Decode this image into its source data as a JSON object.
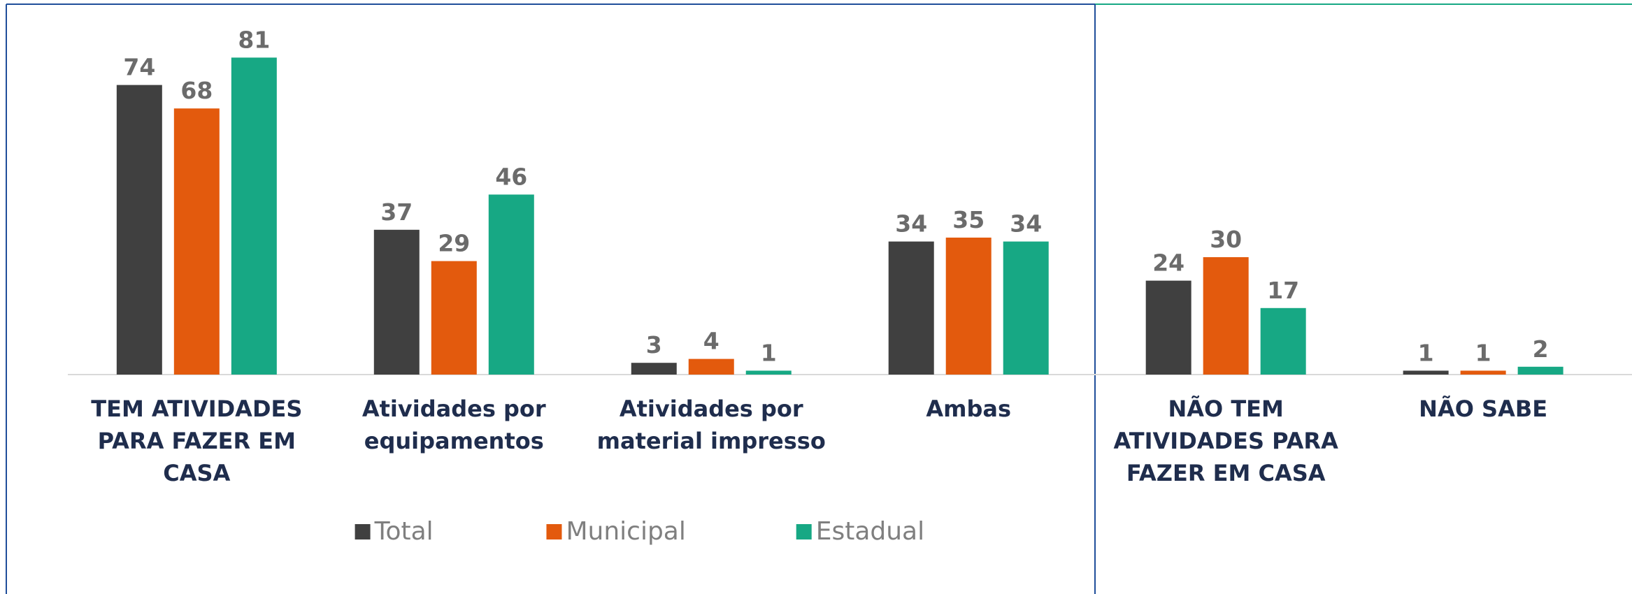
{
  "chart_data": {
    "type": "bar",
    "categories": [
      "TEM ATIVIDADES PARA FAZER EM CASA",
      "Atividades por equipamentos",
      "Atividades por material impresso",
      "Ambas",
      "NÃO TEM ATIVIDADES PARA FAZER EM CASA",
      "NÃO SABE"
    ],
    "series": [
      {
        "name": "Total",
        "color": "#404040",
        "values": [
          74,
          37,
          3,
          34,
          24,
          1
        ]
      },
      {
        "name": "Municipal",
        "color": "#e35a0d",
        "values": [
          68,
          29,
          4,
          35,
          30,
          1
        ]
      },
      {
        "name": "Estadual",
        "color": "#17a884",
        "values": [
          81,
          46,
          1,
          34,
          17,
          2
        ]
      }
    ],
    "ylim": [
      0,
      85
    ]
  }
}
